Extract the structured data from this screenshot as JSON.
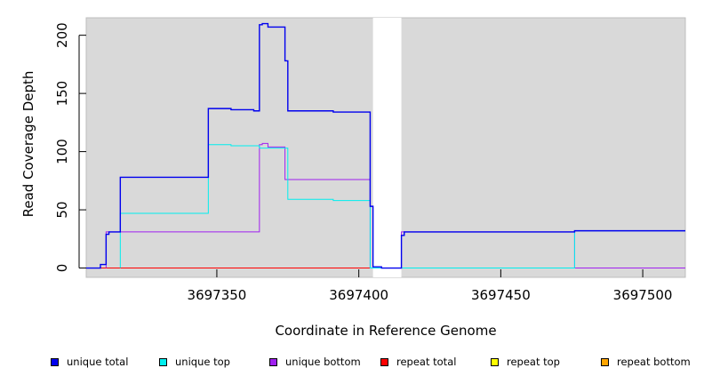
{
  "chart_data": {
    "type": "line",
    "xlabel": "Coordinate in Reference Genome",
    "ylabel": "Read Coverage Depth",
    "xlim": [
      3697304,
      3697515
    ],
    "ylim": [
      -8,
      215
    ],
    "x_ticks": [
      3697350,
      3697400,
      3697450,
      3697500
    ],
    "y_ticks": [
      0,
      50,
      100,
      150,
      200
    ],
    "background": "#d9d9d9",
    "gap": [
      3697405,
      3697415
    ],
    "series": [
      {
        "name": "unique total",
        "color": "#0000ee",
        "points": [
          [
            3697304,
            0
          ],
          [
            3697309,
            0
          ],
          [
            3697309,
            3
          ],
          [
            3697311,
            3
          ],
          [
            3697311,
            29
          ],
          [
            3697312,
            29
          ],
          [
            3697312,
            31
          ],
          [
            3697316,
            31
          ],
          [
            3697316,
            78
          ],
          [
            3697347,
            78
          ],
          [
            3697347,
            137
          ],
          [
            3697355,
            137
          ],
          [
            3697355,
            136
          ],
          [
            3697363,
            136
          ],
          [
            3697363,
            135
          ],
          [
            3697365,
            135
          ],
          [
            3697365,
            209
          ],
          [
            3697366,
            209
          ],
          [
            3697366,
            210
          ],
          [
            3697368,
            210
          ],
          [
            3697368,
            207
          ],
          [
            3697374,
            207
          ],
          [
            3697374,
            178
          ],
          [
            3697375,
            178
          ],
          [
            3697375,
            135
          ],
          [
            3697391,
            135
          ],
          [
            3697391,
            134
          ],
          [
            3697404,
            134
          ],
          [
            3697404,
            53
          ],
          [
            3697405,
            53
          ],
          [
            3697405,
            1
          ],
          [
            3697408,
            1
          ],
          [
            3697408,
            0
          ],
          [
            3697415,
            0
          ],
          [
            3697415,
            28
          ],
          [
            3697416,
            28
          ],
          [
            3697416,
            31
          ],
          [
            3697476,
            31
          ],
          [
            3697476,
            32
          ],
          [
            3697515,
            32
          ]
        ]
      },
      {
        "name": "unique top",
        "color": "#00eeee",
        "points": [
          [
            3697316,
            0
          ],
          [
            3697316,
            47
          ],
          [
            3697347,
            47
          ],
          [
            3697347,
            106
          ],
          [
            3697355,
            106
          ],
          [
            3697355,
            105
          ],
          [
            3697365,
            105
          ],
          [
            3697365,
            103
          ],
          [
            3697375,
            103
          ],
          [
            3697375,
            59
          ],
          [
            3697391,
            59
          ],
          [
            3697391,
            58
          ],
          [
            3697404,
            58
          ],
          [
            3697404,
            0
          ],
          [
            3697476,
            0
          ],
          [
            3697476,
            32
          ],
          [
            3697515,
            32
          ]
        ]
      },
      {
        "name": "unique bottom",
        "color": "#a020f0",
        "points": [
          [
            3697311,
            0
          ],
          [
            3697311,
            31
          ],
          [
            3697365,
            31
          ],
          [
            3697365,
            106
          ],
          [
            3697366,
            106
          ],
          [
            3697366,
            107
          ],
          [
            3697368,
            107
          ],
          [
            3697368,
            104
          ],
          [
            3697374,
            104
          ],
          [
            3697374,
            76
          ],
          [
            3697404,
            76
          ],
          [
            3697404,
            0
          ],
          [
            3697415,
            0
          ],
          [
            3697415,
            31
          ],
          [
            3697476,
            31
          ],
          [
            3697476,
            0
          ],
          [
            3697515,
            0
          ]
        ]
      },
      {
        "name": "repeat total",
        "color": "#ff0000",
        "points": [
          [
            3697304,
            0
          ],
          [
            3697515,
            0
          ]
        ]
      },
      {
        "name": "repeat top",
        "color": "#ffff00",
        "points": [
          [
            3697304,
            0
          ],
          [
            3697515,
            0
          ]
        ]
      },
      {
        "name": "repeat bottom",
        "color": "#ffa500",
        "points": [
          [
            3697304,
            0
          ],
          [
            3697405,
            0
          ]
        ]
      }
    ]
  },
  "legend": {
    "items": [
      {
        "label": "unique total",
        "color": "#0000ee"
      },
      {
        "label": "unique top",
        "color": "#00eeee"
      },
      {
        "label": "unique bottom",
        "color": "#a020f0"
      },
      {
        "label": "repeat total",
        "color": "#ff0000"
      },
      {
        "label": "repeat top",
        "color": "#ffff00"
      },
      {
        "label": "repeat bottom",
        "color": "#ffa500"
      }
    ]
  }
}
